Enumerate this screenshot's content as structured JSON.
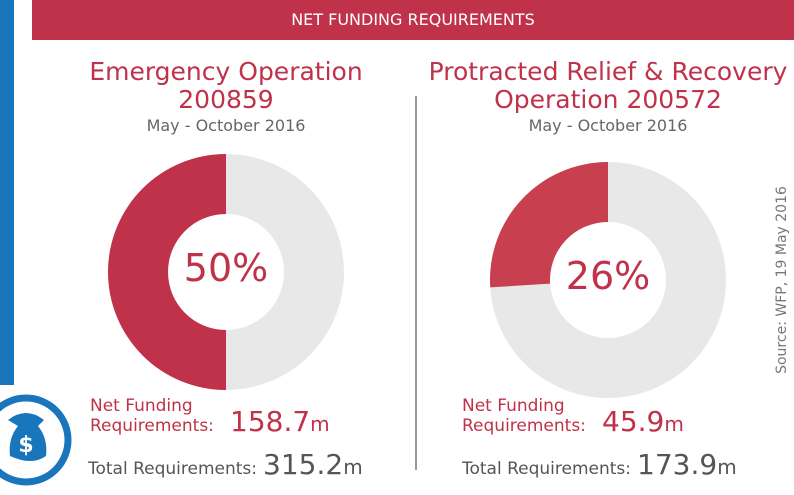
{
  "header": "NET FUNDING REQUIREMENTS",
  "source": "Source: WFP, 19 May 2016",
  "chart_data": [
    {
      "type": "pie",
      "title": "Emergency Operation 200859",
      "subtitle": "May - October 2016",
      "values": [
        50
      ],
      "value_labels": [
        "50%"
      ],
      "color": "#c0314a",
      "track_color": "#e8e8e8",
      "net_label": "Net Funding Requirements:",
      "net_requirements": 158.7,
      "total_label": "Total Requirements:",
      "total_requirements": 315.2,
      "unit": "m"
    },
    {
      "type": "pie",
      "title": "Protracted Relief & Recovery Operation 200572",
      "subtitle": "May - October 2016",
      "values": [
        26
      ],
      "value_labels": [
        "26%"
      ],
      "color": "#c8404f",
      "track_color": "#e8e8e8",
      "net_label": "Net Funding Requirements:",
      "net_requirements": 45.9,
      "total_label": "Total Requirements:",
      "total_requirements": 173.9,
      "unit": "m"
    }
  ]
}
